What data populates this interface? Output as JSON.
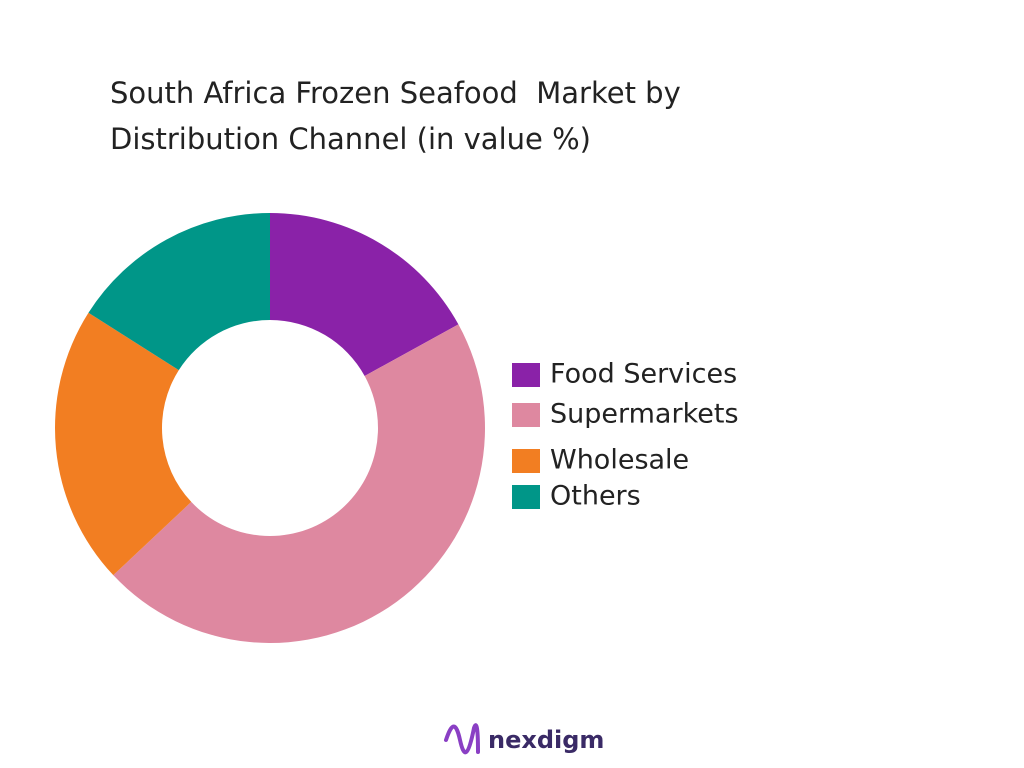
{
  "chart_data": {
    "type": "donut",
    "title": "South Africa Frozen Seafood  Market by Distribution Channel (in value %)",
    "categories": [
      "Food Services",
      "Supermarkets",
      "Wholesale",
      "Others"
    ],
    "values": [
      17,
      46,
      21,
      16
    ],
    "colors": [
      "#8a22a8",
      "#de88a0",
      "#f27e22",
      "#009688"
    ]
  },
  "footer": {
    "logo": "nexdigm"
  }
}
